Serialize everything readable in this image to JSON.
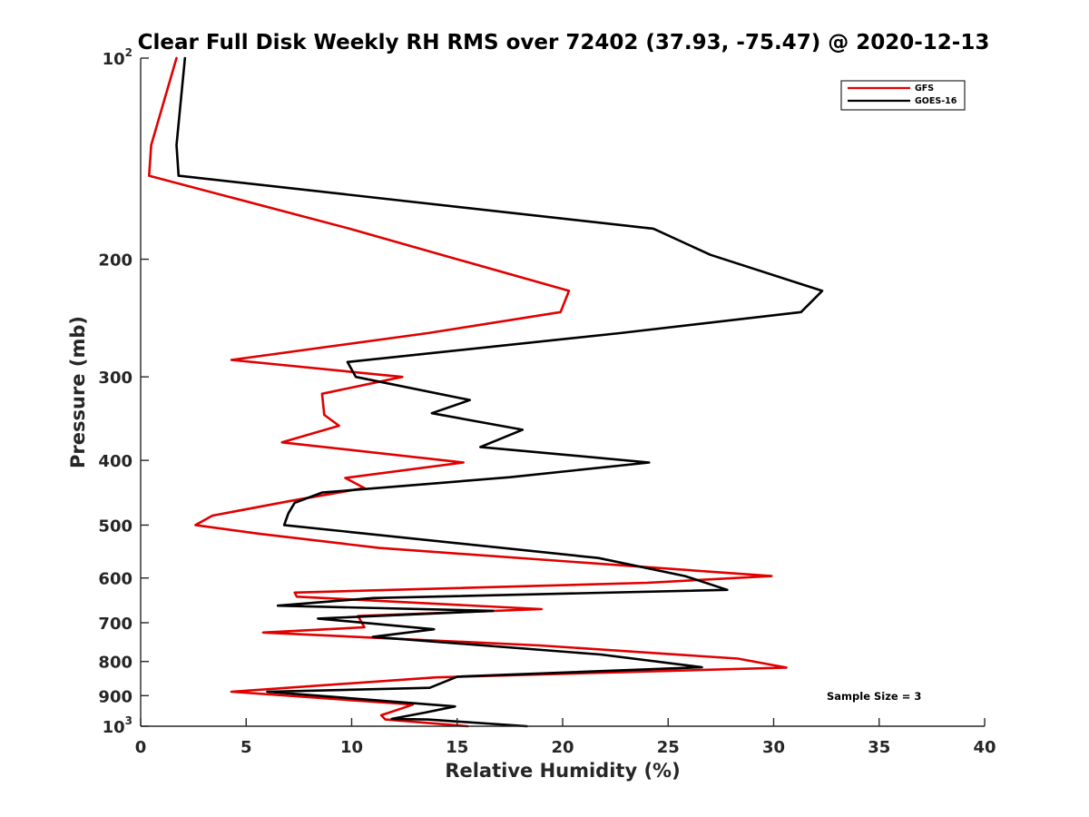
{
  "chart_data": {
    "type": "line",
    "title": "Clear Full Disk Weekly RH RMS over 72402 (37.93, -75.47) @ 2020-12-13",
    "xlabel": "Relative Humidity (%)",
    "ylabel": "Pressure (mb)",
    "xlim": [
      0,
      40
    ],
    "ylim": [
      100,
      1000
    ],
    "yscale": "log",
    "y_reversed": true,
    "grid": false,
    "legend_position": "top-right",
    "x_ticks": [
      0,
      5,
      10,
      15,
      20,
      25,
      30,
      35,
      40
    ],
    "x_tick_labels": [
      "0",
      "5",
      "10",
      "15",
      "20",
      "25",
      "30",
      "35",
      "40"
    ],
    "y_ticks": [
      100,
      200,
      300,
      400,
      500,
      600,
      700,
      800,
      900,
      1000
    ],
    "y_tick_labels": [
      {
        "base": "10",
        "exp": "2"
      },
      {
        "text": "200"
      },
      {
        "text": "300"
      },
      {
        "text": "400"
      },
      {
        "text": "500"
      },
      {
        "text": "600"
      },
      {
        "text": "700"
      },
      {
        "text": "800"
      },
      {
        "text": "900"
      },
      {
        "base": "10",
        "exp": "3"
      }
    ],
    "annotation": "Sample Size = 3",
    "series": [
      {
        "name": "GFS",
        "color": "#e00000",
        "points": [
          [
            1.7,
            100
          ],
          [
            1.0,
            119
          ],
          [
            0.5,
            135
          ],
          [
            0.4,
            150
          ],
          [
            9.9,
            180
          ],
          [
            15.0,
            200
          ],
          [
            20.3,
            223
          ],
          [
            19.9,
            240
          ],
          [
            13.6,
            258
          ],
          [
            4.3,
            283
          ],
          [
            12.4,
            300
          ],
          [
            8.6,
            318
          ],
          [
            8.7,
            342
          ],
          [
            9.4,
            355
          ],
          [
            6.7,
            376
          ],
          [
            15.3,
            403
          ],
          [
            9.7,
            425
          ],
          [
            10.6,
            440
          ],
          [
            7.1,
            460
          ],
          [
            3.4,
            484
          ],
          [
            2.6,
            500
          ],
          [
            5.6,
            515
          ],
          [
            11.3,
            541
          ],
          [
            29.9,
            596
          ],
          [
            24.0,
            610
          ],
          [
            7.3,
            631
          ],
          [
            7.4,
            640
          ],
          [
            19.0,
            668
          ],
          [
            10.3,
            684
          ],
          [
            10.6,
            711
          ],
          [
            5.8,
            724
          ],
          [
            18.9,
            757
          ],
          [
            28.3,
            792
          ],
          [
            30.6,
            817
          ],
          [
            14.0,
            845
          ],
          [
            4.3,
            888
          ],
          [
            12.9,
            928
          ],
          [
            12.4,
            940
          ],
          [
            11.4,
            963
          ],
          [
            11.6,
            977
          ],
          [
            15.5,
            1000
          ]
        ]
      },
      {
        "name": "GOES-16",
        "color": "#000000",
        "points": [
          [
            2.1,
            100
          ],
          [
            1.7,
            135
          ],
          [
            1.8,
            150
          ],
          [
            24.3,
            180
          ],
          [
            27.0,
            197
          ],
          [
            32.3,
            223
          ],
          [
            31.3,
            240
          ],
          [
            22.7,
            258
          ],
          [
            9.8,
            285
          ],
          [
            10.2,
            300
          ],
          [
            15.6,
            325
          ],
          [
            13.8,
            340
          ],
          [
            18.1,
            360
          ],
          [
            16.1,
            382
          ],
          [
            24.1,
            403
          ],
          [
            17.5,
            424
          ],
          [
            8.6,
            447
          ],
          [
            7.3,
            463
          ],
          [
            7.0,
            480
          ],
          [
            6.8,
            500
          ],
          [
            21.7,
            560
          ],
          [
            25.8,
            596
          ],
          [
            27.8,
            625
          ],
          [
            11.0,
            643
          ],
          [
            6.5,
            660
          ],
          [
            16.7,
            672
          ],
          [
            8.4,
            690
          ],
          [
            13.9,
            716
          ],
          [
            11.0,
            735
          ],
          [
            21.8,
            781
          ],
          [
            26.6,
            816
          ],
          [
            15.0,
            843
          ],
          [
            13.7,
            876
          ],
          [
            6.0,
            888
          ],
          [
            14.9,
            934
          ],
          [
            13.5,
            954
          ],
          [
            11.9,
            975
          ],
          [
            13.6,
            977
          ],
          [
            18.3,
            1000
          ]
        ]
      }
    ]
  }
}
